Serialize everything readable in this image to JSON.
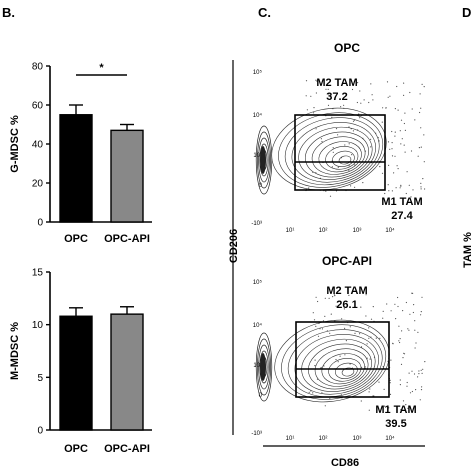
{
  "panel_letters": {
    "b": "B.",
    "c": "C.",
    "d": "D"
  },
  "colors": {
    "opc": "#000000",
    "opc_api": "#888888"
  },
  "chart_data": [
    {
      "type": "bar",
      "categories": [
        "OPC",
        "OPC-API"
      ],
      "values": [
        55,
        47
      ],
      "errors": [
        5,
        3
      ],
      "ylabel": "G-MDSC %",
      "ylim": [
        0,
        80
      ],
      "yticks": [
        "0",
        "20",
        "40",
        "60",
        "80"
      ],
      "annotation": "*"
    },
    {
      "type": "bar",
      "categories": [
        "OPC",
        "OPC-API"
      ],
      "values": [
        10.8,
        11.0
      ],
      "errors": [
        0.8,
        0.7
      ],
      "ylabel": "M-MDSC %",
      "ylim": [
        0,
        15
      ],
      "yticks": [
        "0",
        "5",
        "10",
        "15"
      ]
    }
  ],
  "flow": {
    "ylabel": "CD206",
    "xlabel": "CD86",
    "right_partial_label": "TAM %",
    "x_ticks": [
      "10¹",
      "10²",
      "10³",
      "10⁴"
    ],
    "y_ticks": [
      "10⁵",
      "10⁴",
      "10³",
      "0",
      "-10³"
    ],
    "plots": [
      {
        "title": "OPC",
        "m2_label": "M2 TAM",
        "m2_value": "37.2",
        "m1_label": "M1 TAM",
        "m1_value": "27.4"
      },
      {
        "title": "OPC-API",
        "m2_label": "M2 TAM",
        "m2_value": "26.1",
        "m1_label": "M1 TAM",
        "m1_value": "39.5"
      }
    ]
  }
}
